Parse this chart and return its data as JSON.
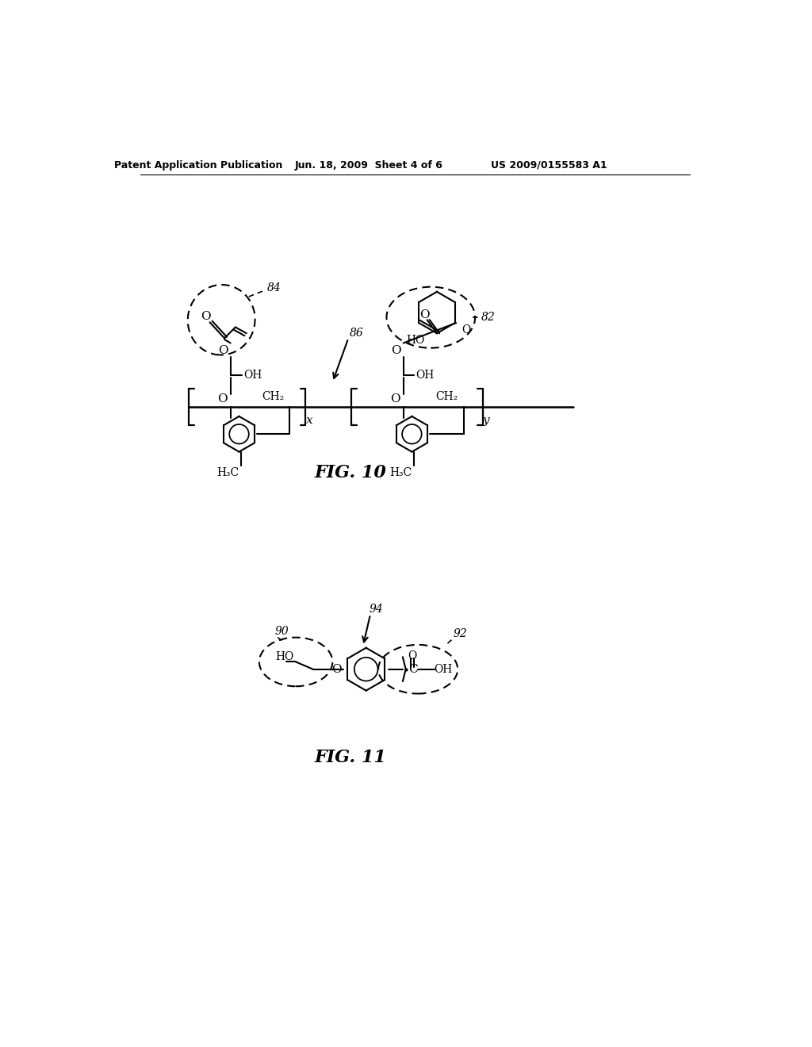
{
  "header_left": "Patent Application Publication",
  "header_mid": "Jun. 18, 2009  Sheet 4 of 6",
  "header_right": "US 2009/0155583 A1",
  "fig10_label": "FIG. 10",
  "fig11_label": "FIG. 11",
  "label_84": "84",
  "label_86": "86",
  "label_82": "82",
  "label_90": "90",
  "label_92": "92",
  "label_94": "94",
  "background": "#ffffff",
  "line_color": "#000000"
}
